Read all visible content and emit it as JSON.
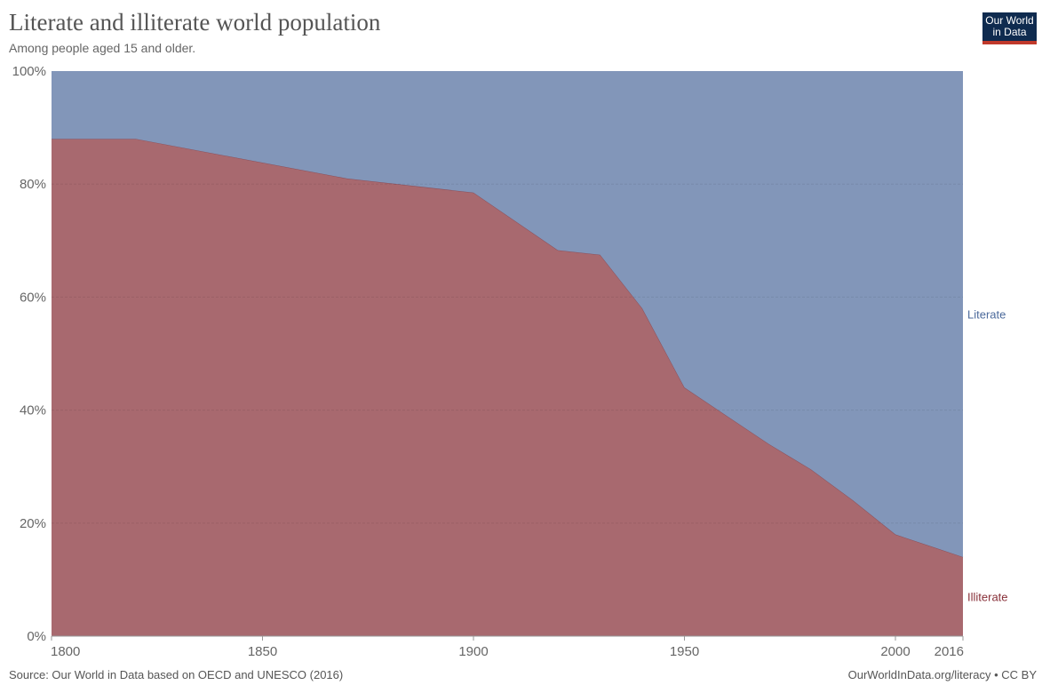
{
  "header": {
    "title": "Literate and illiterate world population",
    "subtitle": "Among people aged 15 and older."
  },
  "logo": {
    "line1": "Our World",
    "line2": "in Data"
  },
  "footer": {
    "source": "Source: Our World in Data based on OECD and UNESCO (2016)",
    "link": "OurWorldInData.org/literacy • CC BY"
  },
  "chart_data": {
    "type": "area",
    "stacked": true,
    "x": [
      1800,
      1820,
      1870,
      1900,
      1920,
      1930,
      1940,
      1950,
      1960,
      1970,
      1980,
      1990,
      2000,
      2010,
      2016
    ],
    "series": [
      {
        "name": "Illiterate",
        "color": "#a8696f",
        "values": [
          88,
          88,
          81,
          78.5,
          68.3,
          67.5,
          58,
          44,
          39,
          34,
          29.5,
          24,
          18,
          15.5,
          14
        ]
      },
      {
        "name": "Literate",
        "color": "#8296b9",
        "values": [
          12,
          12,
          19,
          21.5,
          31.7,
          32.5,
          42,
          56,
          61,
          66,
          70.5,
          76,
          82,
          84.5,
          86
        ]
      }
    ],
    "xlim": [
      1800,
      2016
    ],
    "ylim": [
      0,
      100
    ],
    "x_ticks": [
      "1800",
      "1850",
      "1900",
      "1950",
      "2000",
      "2016"
    ],
    "y_ticks": [
      "0%",
      "20%",
      "40%",
      "60%",
      "80%",
      "100%"
    ],
    "grid": "horizontal dashed",
    "legend": "right, inline labels"
  }
}
